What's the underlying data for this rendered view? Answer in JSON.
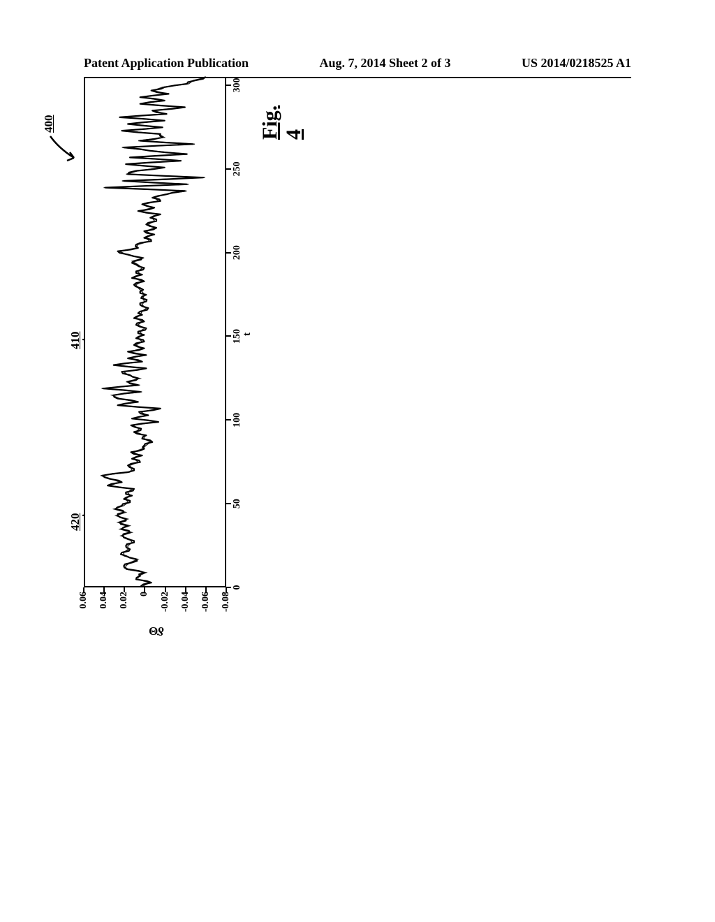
{
  "header": {
    "left": "Patent Application Publication",
    "center": "Aug. 7, 2014   Sheet 2 of 3",
    "right": "US 2014/0218525 A1"
  },
  "figure": {
    "ref_number": "400",
    "callouts": {
      "a": "410",
      "b": "420"
    },
    "caption": "Fig. 4",
    "chart": {
      "type": "line",
      "xlabel": "t",
      "ylabel": "δ̇Θ",
      "xlim": [
        0,
        305
      ],
      "ylim": [
        -0.08,
        0.06
      ],
      "xticks": [
        0,
        50,
        100,
        150,
        200,
        250,
        300
      ],
      "yticks": [
        -0.08,
        -0.06,
        -0.04,
        -0.02,
        0,
        0.02,
        0.04,
        0.06
      ],
      "line_color": "#000000",
      "line_width": 2.2,
      "background": "#ffffff",
      "border_color": "#000000",
      "tick_fontsize": 14,
      "label_fontsize": 16,
      "series": {
        "t": [
          0,
          2,
          4,
          6,
          8,
          10,
          12,
          14,
          16,
          18,
          20,
          22,
          24,
          26,
          28,
          30,
          32,
          34,
          36,
          38,
          40,
          42,
          44,
          46,
          48,
          50,
          52,
          54,
          56,
          58,
          60,
          62,
          64,
          66,
          68,
          70,
          72,
          74,
          76,
          78,
          80,
          82,
          84,
          86,
          88,
          90,
          92,
          94,
          96,
          98,
          100,
          102,
          104,
          106,
          108,
          110,
          112,
          114,
          116,
          118,
          120,
          122,
          124,
          126,
          128,
          130,
          132,
          134,
          136,
          138,
          140,
          142,
          144,
          146,
          148,
          150,
          152,
          154,
          156,
          158,
          160,
          162,
          164,
          166,
          168,
          170,
          172,
          174,
          176,
          178,
          180,
          182,
          184,
          186,
          188,
          190,
          192,
          194,
          196,
          198,
          200,
          202,
          204,
          206,
          208,
          210,
          212,
          214,
          216,
          218,
          220,
          222,
          224,
          226,
          228,
          230,
          232,
          234,
          236,
          238,
          240,
          242,
          244,
          246,
          248,
          250,
          252,
          254,
          256,
          258,
          260,
          262,
          264,
          266,
          268,
          270,
          272,
          274,
          276,
          278,
          280,
          282,
          284,
          286,
          288,
          290,
          292,
          294,
          296,
          298,
          300,
          302,
          304
        ],
        "y": [
          0.005,
          -0.005,
          0.01,
          0.006,
          0.002,
          0.018,
          0.022,
          0.014,
          0.01,
          0.02,
          0.024,
          0.016,
          0.02,
          0.012,
          0.018,
          0.023,
          0.016,
          0.024,
          0.018,
          0.026,
          0.02,
          0.028,
          0.022,
          0.03,
          0.024,
          0.016,
          0.022,
          0.014,
          0.02,
          0.012,
          0.038,
          0.024,
          0.036,
          0.043,
          0.018,
          0.012,
          0.018,
          0.006,
          0.014,
          0.004,
          0.015,
          0.002,
          0.002,
          -0.006,
          0.004,
          0.0,
          0.012,
          0.005,
          0.015,
          -0.012,
          0.014,
          -0.002,
          0.007,
          -0.014,
          0.028,
          0.008,
          0.028,
          0.032,
          0.006,
          0.042,
          0.008,
          0.018,
          0.008,
          0.016,
          0.024,
          0.0,
          0.032,
          0.004,
          0.018,
          0.0,
          0.018,
          0.002,
          0.012,
          0.002,
          0.01,
          0.002,
          0.008,
          0.0,
          0.01,
          0.002,
          0.012,
          0.004,
          0.006,
          -0.002,
          0.006,
          0.0,
          0.005,
          0.0,
          0.006,
          0.006,
          0.012,
          0.002,
          0.014,
          0.004,
          0.01,
          0.002,
          0.01,
          0.012,
          0.004,
          0.018,
          0.028,
          0.008,
          0.01,
          -0.005,
          0.002,
          -0.008,
          0.002,
          -0.01,
          0.0,
          -0.01,
          -0.004,
          -0.014,
          0.008,
          -0.008,
          0.004,
          -0.014,
          -0.006,
          -0.02,
          -0.038,
          0.04,
          -0.04,
          0.022,
          -0.056,
          0.018,
          0.01,
          -0.018,
          0.02,
          -0.034,
          0.016,
          -0.04,
          -0.004,
          0.022,
          -0.046,
          0.006,
          -0.016,
          -0.014,
          0.024,
          -0.016,
          0.018,
          -0.018,
          0.026,
          -0.02,
          -0.006,
          -0.038,
          0.006,
          -0.018,
          0.006,
          -0.022,
          -0.005,
          -0.018,
          -0.04,
          -0.048,
          -0.058
        ]
      }
    }
  }
}
